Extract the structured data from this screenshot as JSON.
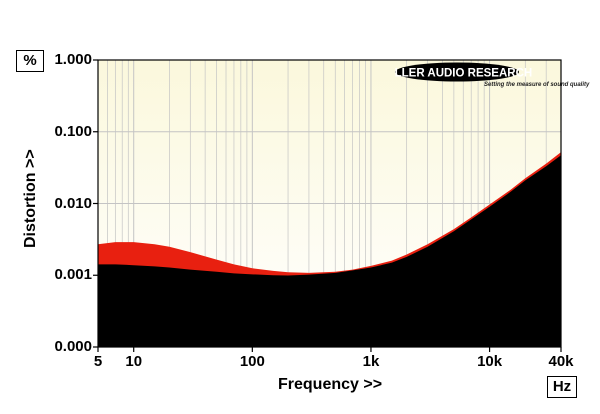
{
  "header": {
    "y_unit": "%",
    "x_unit": "Hz"
  },
  "logo": {
    "name": "MILLER AUDIO RESEARCH",
    "tagline": "Setting the measure of sound quality"
  },
  "colors": {
    "plot_bg_top": "#fbf8dc",
    "plot_bg_bottom": "#ffffff",
    "grid": "#c4c4c4",
    "series_a": "#e82010",
    "series_b": "#000000"
  },
  "chart_data": {
    "type": "area",
    "title": "",
    "xlabel": "Frequency >>",
    "ylabel": "Distortion >>",
    "xscale": "log",
    "yscale": "log",
    "xlim": [
      5,
      40000
    ],
    "ylim": [
      0.0001,
      1.0
    ],
    "x_tick_labels": [
      "5",
      "10",
      "100",
      "1k",
      "10k",
      "40k"
    ],
    "x_ticks": [
      5,
      10,
      100,
      1000,
      10000,
      40000
    ],
    "y_tick_labels": [
      "0.000",
      "0.001",
      "0.010",
      "0.100",
      "1.000"
    ],
    "y_ticks": [
      0.0001,
      0.001,
      0.01,
      0.1,
      1.0
    ],
    "grid": true,
    "series": [
      {
        "x": [
          5,
          7,
          10,
          15,
          20,
          30,
          50,
          70,
          100,
          150,
          200,
          300,
          500,
          700,
          1000,
          1500,
          2000,
          3000,
          5000,
          7000,
          10000,
          15000,
          20000,
          30000,
          40000
        ],
        "y": [
          0.0027,
          0.0029,
          0.0029,
          0.0027,
          0.0025,
          0.0021,
          0.00165,
          0.00142,
          0.00125,
          0.00115,
          0.0011,
          0.00108,
          0.00112,
          0.0012,
          0.00135,
          0.0016,
          0.00195,
          0.0027,
          0.0044,
          0.0064,
          0.0097,
          0.0155,
          0.0225,
          0.036,
          0.052
        ]
      },
      {
        "x": [
          5,
          7,
          10,
          15,
          20,
          30,
          50,
          70,
          100,
          150,
          200,
          300,
          500,
          700,
          1000,
          1500,
          2000,
          3000,
          5000,
          7000,
          10000,
          15000,
          20000,
          30000,
          40000
        ],
        "y": [
          0.00142,
          0.00142,
          0.00138,
          0.00133,
          0.00128,
          0.0012,
          0.00112,
          0.00106,
          0.00103,
          0.001,
          0.00099,
          0.00102,
          0.00108,
          0.00117,
          0.00128,
          0.0015,
          0.0018,
          0.0025,
          0.0041,
          0.006,
          0.009,
          0.0145,
          0.021,
          0.033,
          0.047
        ]
      }
    ]
  }
}
